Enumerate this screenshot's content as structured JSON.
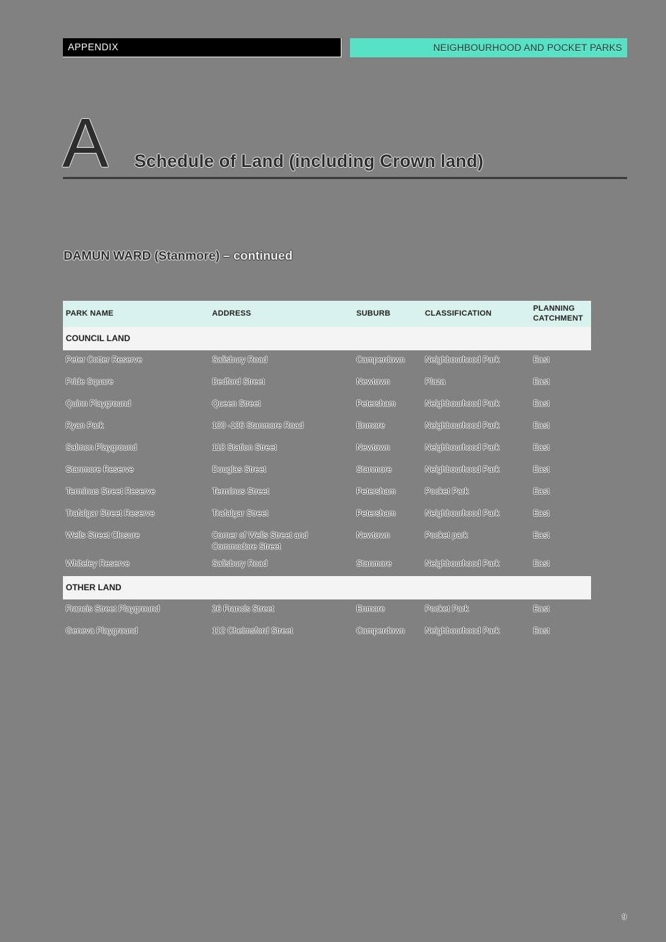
{
  "page": {
    "header": {
      "left_tab": "APPENDIX",
      "right_tab": "NEIGHBOURHOOD AND POCKET PARKS"
    },
    "title": {
      "letter": "A",
      "text": "Schedule of Land (including Crown land)"
    },
    "section_heading": {
      "main": "DAMUN WARD (Stanmore)",
      "suffix": "– continued"
    },
    "page_number": "9"
  },
  "table": {
    "columns": [
      "PARK NAME",
      "ADDRESS",
      "SUBURB",
      "CLASSIFICATION",
      "PLANNING CATCHMENT"
    ],
    "sections": [
      {
        "label": "COUNCIL LAND",
        "rows": [
          [
            "Peter Cotter Reserve",
            "Salisbury Road",
            "Camperdown",
            "Neighbourhood Park",
            "East"
          ],
          [
            "Pride Square",
            "Bedford Street",
            "Newtown",
            "Plaza",
            "East"
          ],
          [
            "Quinn Playground",
            "Queen Street",
            "Petersham",
            "Neighbourhood Park",
            "East"
          ],
          [
            "Ryan Park",
            "130 -136 Stanmore Road",
            "Enmore",
            "Neighbourhood Park",
            "East"
          ],
          [
            "Salmon Playground",
            "118 Station Street",
            "Newtown",
            "Neighbourhood Park",
            "East"
          ],
          [
            "Stanmore Reserve",
            "Douglas Street",
            "Stanmore",
            "Neighbourhood Park",
            "East"
          ],
          [
            "Terminus Street Reserve",
            "Terminus Street",
            "Petersham",
            "Pocket Park",
            "East"
          ],
          [
            "Trafalgar Street Reserve",
            "Trafalgar Street",
            "Petersham",
            "Neighbourhood Park",
            "East"
          ],
          [
            "Wells Street Closure",
            "Corner of Wells Street and Commodore Street",
            "Newtown",
            "Pocket park",
            "East"
          ],
          [
            "Whiteley Reserve",
            "Salisbury Road",
            "Stanmore",
            "Neighbourhood Park",
            "East"
          ]
        ]
      },
      {
        "label": "OTHER LAND",
        "rows": [
          [
            "Francis Street Playground",
            "26 Francis Street",
            "Enmore",
            "Pocket Park",
            "East"
          ],
          [
            "Geneva Playground",
            "112 Chelmsford Street",
            "Camperdown",
            "Neighbourhood Park",
            "East"
          ]
        ]
      }
    ]
  },
  "colors": {
    "background": "#818181",
    "accent_teal": "#57e1c5",
    "table_header_bg": "#daf2ed",
    "section_band_bg": "#f4f4f4",
    "bar_black": "#000000"
  }
}
